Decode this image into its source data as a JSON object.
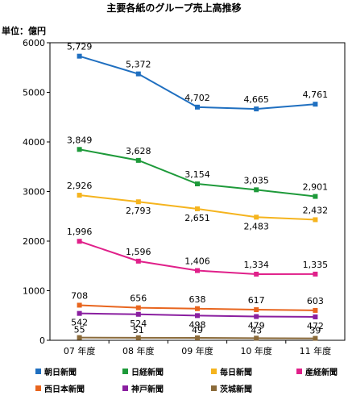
{
  "chart_data": {
    "type": "line",
    "title": "主要各紙のグループ売上高推移",
    "unit_label": "単位：億円",
    "categories": [
      "07 年度",
      "08 年度",
      "09 年度",
      "10 年度",
      "11 年度"
    ],
    "ylim": [
      0,
      6000
    ],
    "yticks": [
      0,
      1000,
      2000,
      3000,
      4000,
      5000,
      6000
    ],
    "grid": false,
    "legend_position": "bottom",
    "series": [
      {
        "name": "朝日新聞",
        "color": "#1f6fc0",
        "values": [
          5729,
          5372,
          4702,
          4665,
          4761
        ]
      },
      {
        "name": "日経新聞",
        "color": "#1e9a3a",
        "values": [
          3849,
          3628,
          3154,
          3035,
          2901
        ]
      },
      {
        "name": "毎日新聞",
        "color": "#f5b41e",
        "values": [
          2926,
          2793,
          2651,
          2483,
          2432
        ]
      },
      {
        "name": "産経新聞",
        "color": "#e0208a",
        "values": [
          1996,
          1596,
          1406,
          1334,
          1335
        ]
      },
      {
        "name": "西日本新聞",
        "color": "#e8651e",
        "values": [
          708,
          656,
          638,
          617,
          603
        ]
      },
      {
        "name": "神戸新聞",
        "color": "#8a1fa0",
        "values": [
          542,
          524,
          498,
          479,
          472
        ]
      },
      {
        "name": "茨城新聞",
        "color": "#8a6a3a",
        "values": [
          55,
          51,
          49,
          43,
          39
        ]
      }
    ]
  }
}
